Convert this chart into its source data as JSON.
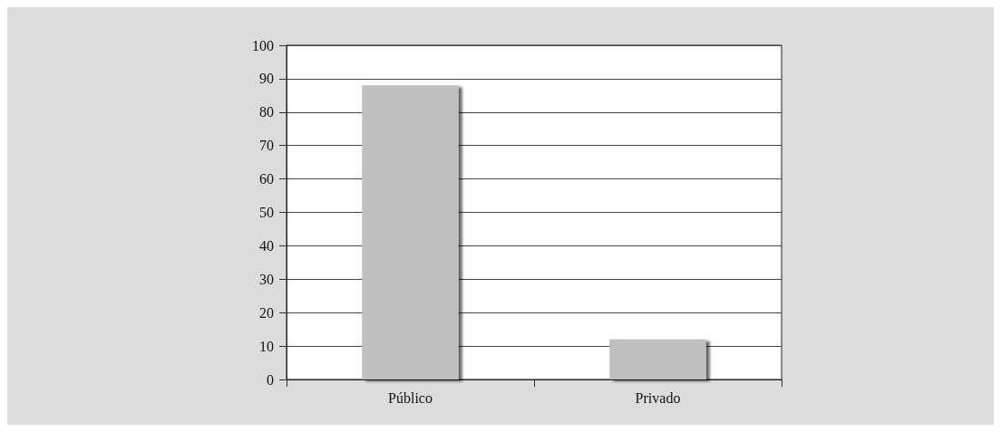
{
  "chart_data": {
    "type": "bar",
    "categories": [
      "Público",
      "Privado"
    ],
    "values": [
      88,
      12
    ],
    "color": "#bfbfbf",
    "ylim": [
      0,
      100
    ],
    "yticks": [
      0,
      10,
      20,
      30,
      40,
      50,
      60,
      70,
      80,
      90,
      100
    ],
    "grid": "y"
  }
}
